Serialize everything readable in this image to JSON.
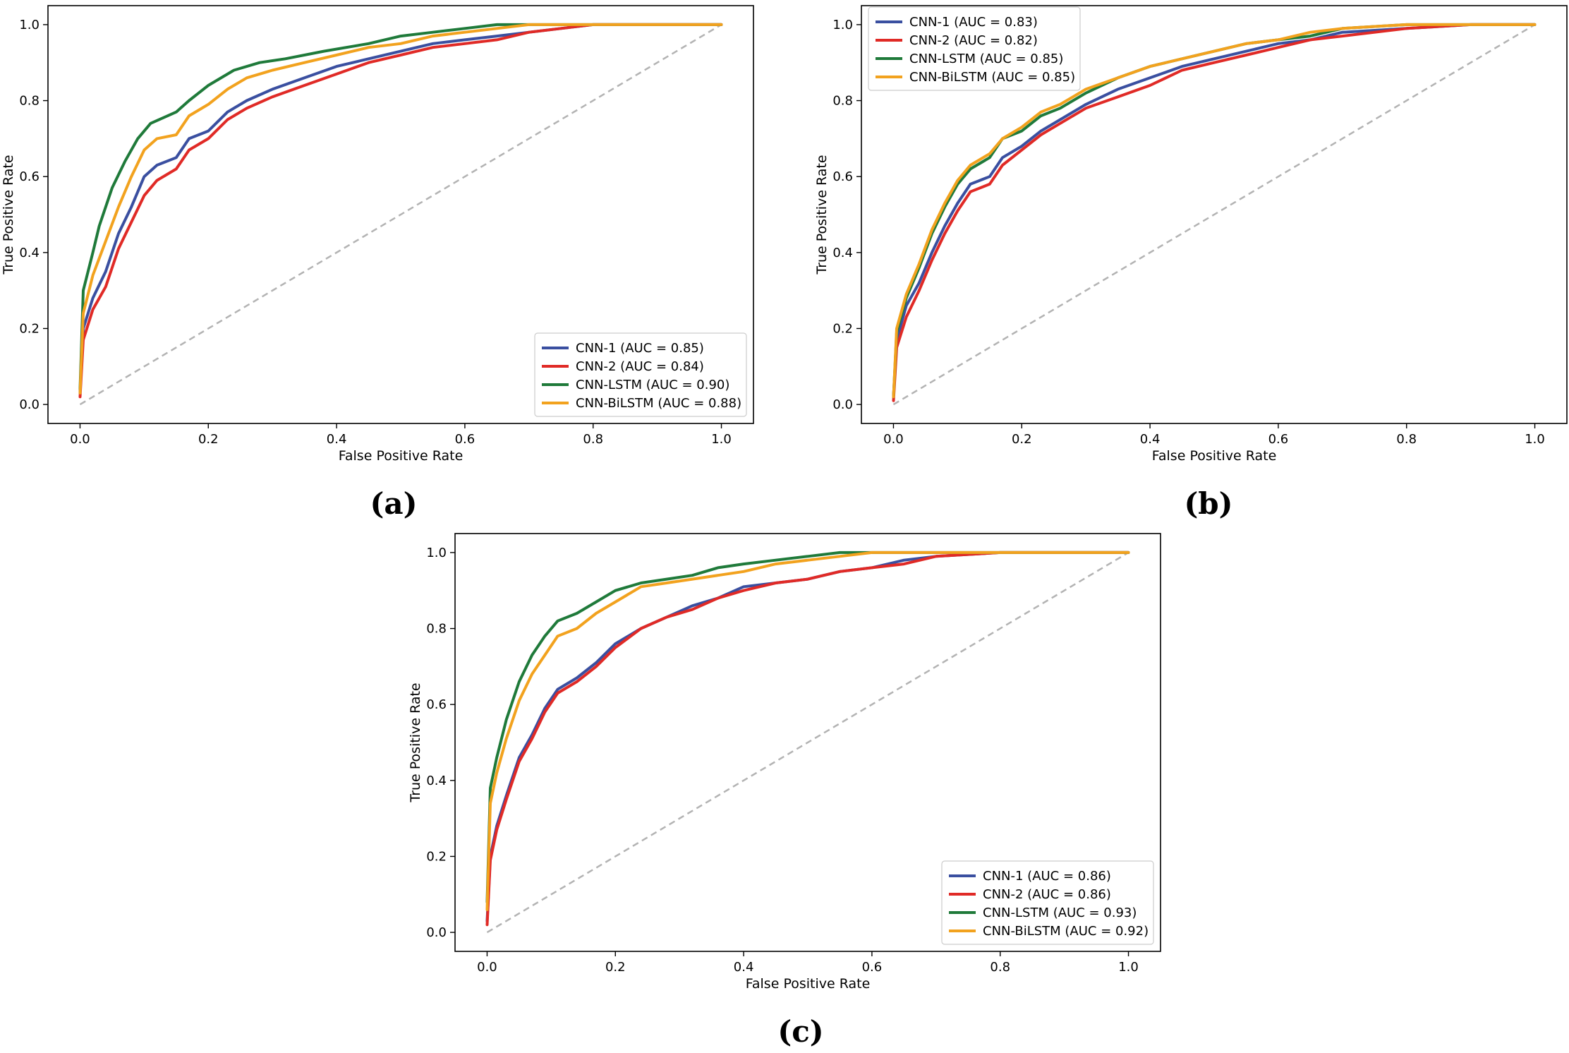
{
  "colors": {
    "CNN-1": "#3a4fa0",
    "CNN-2": "#e02a26",
    "CNN-LSTM": "#1f7a3a",
    "CNN-BiLSTM": "#f2a21e",
    "diagonal": "#b3b3b3"
  },
  "chart_data": [
    {
      "panel_label": "(a)",
      "type": "line",
      "xlabel": "False Positive Rate",
      "ylabel": "True Positive Rate",
      "xlim": [
        -0.05,
        1.05
      ],
      "ylim": [
        -0.05,
        1.05
      ],
      "xticks": [
        "0.0",
        "0.2",
        "0.4",
        "0.6",
        "0.8",
        "1.0"
      ],
      "yticks": [
        "0.0",
        "0.2",
        "0.4",
        "0.6",
        "0.8",
        "1.0"
      ],
      "grid": false,
      "legend_position": "lower-right",
      "reference_line": [
        [
          0,
          0
        ],
        [
          1,
          1
        ]
      ],
      "series": [
        {
          "name": "CNN-1",
          "legend": "CNN-1 (AUC = 0.85)",
          "color": "#3a4fa0",
          "x": [
            0,
            0.005,
            0.02,
            0.04,
            0.06,
            0.08,
            0.1,
            0.12,
            0.15,
            0.17,
            0.2,
            0.23,
            0.26,
            0.3,
            0.35,
            0.4,
            0.45,
            0.5,
            0.55,
            0.6,
            0.65,
            0.7,
            0.75,
            0.8,
            0.9,
            1
          ],
          "y": [
            0.03,
            0.2,
            0.28,
            0.35,
            0.45,
            0.52,
            0.6,
            0.63,
            0.65,
            0.7,
            0.72,
            0.77,
            0.8,
            0.83,
            0.86,
            0.89,
            0.91,
            0.93,
            0.95,
            0.96,
            0.97,
            0.98,
            0.99,
            1.0,
            1.0,
            1.0
          ]
        },
        {
          "name": "CNN-2",
          "legend": "CNN-2 (AUC = 0.84)",
          "color": "#e02a26",
          "x": [
            0,
            0.005,
            0.02,
            0.04,
            0.06,
            0.08,
            0.1,
            0.12,
            0.15,
            0.17,
            0.2,
            0.23,
            0.26,
            0.3,
            0.35,
            0.4,
            0.45,
            0.5,
            0.55,
            0.6,
            0.65,
            0.7,
            0.75,
            0.8,
            0.9,
            1
          ],
          "y": [
            0.02,
            0.17,
            0.25,
            0.31,
            0.41,
            0.48,
            0.55,
            0.59,
            0.62,
            0.67,
            0.7,
            0.75,
            0.78,
            0.81,
            0.84,
            0.87,
            0.9,
            0.92,
            0.94,
            0.95,
            0.96,
            0.98,
            0.99,
            1.0,
            1.0,
            1.0
          ]
        },
        {
          "name": "CNN-LSTM",
          "legend": "CNN-LSTM (AUC = 0.90)",
          "color": "#1f7a3a",
          "x": [
            0,
            0.005,
            0.02,
            0.03,
            0.05,
            0.07,
            0.09,
            0.11,
            0.15,
            0.17,
            0.2,
            0.24,
            0.28,
            0.32,
            0.38,
            0.45,
            0.5,
            0.55,
            0.6,
            0.65,
            0.7,
            0.8,
            0.9,
            1
          ],
          "y": [
            0.04,
            0.3,
            0.4,
            0.47,
            0.57,
            0.64,
            0.7,
            0.74,
            0.77,
            0.8,
            0.84,
            0.88,
            0.9,
            0.91,
            0.93,
            0.95,
            0.97,
            0.98,
            0.99,
            1.0,
            1.0,
            1.0,
            1.0,
            1.0
          ]
        },
        {
          "name": "CNN-BiLSTM",
          "legend": "CNN-BiLSTM (AUC = 0.88)",
          "color": "#f2a21e",
          "x": [
            0,
            0.005,
            0.02,
            0.04,
            0.06,
            0.08,
            0.1,
            0.12,
            0.15,
            0.17,
            0.2,
            0.23,
            0.26,
            0.3,
            0.35,
            0.4,
            0.45,
            0.5,
            0.55,
            0.6,
            0.65,
            0.7,
            0.8,
            0.9,
            1
          ],
          "y": [
            0.03,
            0.24,
            0.34,
            0.43,
            0.52,
            0.6,
            0.67,
            0.7,
            0.71,
            0.76,
            0.79,
            0.83,
            0.86,
            0.88,
            0.9,
            0.92,
            0.94,
            0.95,
            0.97,
            0.98,
            0.99,
            1.0,
            1.0,
            1.0,
            1.0
          ]
        }
      ]
    },
    {
      "panel_label": "(b)",
      "type": "line",
      "xlabel": "False Positive Rate",
      "ylabel": "True Positive Rate",
      "xlim": [
        -0.05,
        1.05
      ],
      "ylim": [
        -0.05,
        1.05
      ],
      "xticks": [
        "0.0",
        "0.2",
        "0.4",
        "0.6",
        "0.8",
        "1.0"
      ],
      "yticks": [
        "0.0",
        "0.2",
        "0.4",
        "0.6",
        "0.8",
        "1.0"
      ],
      "grid": false,
      "legend_position": "upper-left",
      "reference_line": [
        [
          0,
          0
        ],
        [
          1,
          1
        ]
      ],
      "series": [
        {
          "name": "CNN-1",
          "legend": "CNN-1 (AUC = 0.83)",
          "color": "#3a4fa0",
          "x": [
            0,
            0.005,
            0.02,
            0.04,
            0.06,
            0.08,
            0.1,
            0.12,
            0.15,
            0.17,
            0.2,
            0.23,
            0.26,
            0.3,
            0.35,
            0.4,
            0.45,
            0.5,
            0.55,
            0.6,
            0.65,
            0.7,
            0.8,
            0.9,
            1
          ],
          "y": [
            0.02,
            0.17,
            0.26,
            0.32,
            0.4,
            0.47,
            0.53,
            0.58,
            0.6,
            0.65,
            0.68,
            0.72,
            0.75,
            0.79,
            0.83,
            0.86,
            0.89,
            0.91,
            0.93,
            0.95,
            0.96,
            0.98,
            0.99,
            1.0,
            1.0
          ]
        },
        {
          "name": "CNN-2",
          "legend": "CNN-2 (AUC = 0.82)",
          "color": "#e02a26",
          "x": [
            0,
            0.005,
            0.02,
            0.04,
            0.06,
            0.08,
            0.1,
            0.12,
            0.15,
            0.17,
            0.2,
            0.23,
            0.26,
            0.3,
            0.35,
            0.4,
            0.45,
            0.5,
            0.55,
            0.6,
            0.65,
            0.7,
            0.8,
            0.9,
            1
          ],
          "y": [
            0.01,
            0.15,
            0.23,
            0.3,
            0.38,
            0.45,
            0.51,
            0.56,
            0.58,
            0.63,
            0.67,
            0.71,
            0.74,
            0.78,
            0.81,
            0.84,
            0.88,
            0.9,
            0.92,
            0.94,
            0.96,
            0.97,
            0.99,
            1.0,
            1.0
          ]
        },
        {
          "name": "CNN-LSTM",
          "legend": "CNN-LSTM (AUC = 0.85)",
          "color": "#1f7a3a",
          "x": [
            0,
            0.005,
            0.02,
            0.04,
            0.06,
            0.08,
            0.1,
            0.12,
            0.15,
            0.17,
            0.2,
            0.23,
            0.26,
            0.3,
            0.35,
            0.4,
            0.45,
            0.5,
            0.55,
            0.6,
            0.65,
            0.7,
            0.8,
            0.9,
            1
          ],
          "y": [
            0.02,
            0.19,
            0.28,
            0.36,
            0.45,
            0.52,
            0.58,
            0.62,
            0.65,
            0.7,
            0.72,
            0.76,
            0.78,
            0.82,
            0.86,
            0.89,
            0.91,
            0.93,
            0.95,
            0.96,
            0.97,
            0.99,
            1.0,
            1.0,
            1.0
          ]
        },
        {
          "name": "CNN-BiLSTM",
          "legend": "CNN-BiLSTM (AUC = 0.85)",
          "color": "#f2a21e",
          "x": [
            0,
            0.005,
            0.02,
            0.04,
            0.06,
            0.08,
            0.1,
            0.12,
            0.15,
            0.17,
            0.2,
            0.23,
            0.26,
            0.3,
            0.35,
            0.4,
            0.45,
            0.5,
            0.55,
            0.6,
            0.65,
            0.7,
            0.8,
            0.9,
            1
          ],
          "y": [
            0.02,
            0.2,
            0.29,
            0.37,
            0.46,
            0.53,
            0.59,
            0.63,
            0.66,
            0.7,
            0.73,
            0.77,
            0.79,
            0.83,
            0.86,
            0.89,
            0.91,
            0.93,
            0.95,
            0.96,
            0.98,
            0.99,
            1.0,
            1.0,
            1.0
          ]
        }
      ]
    },
    {
      "panel_label": "(c)",
      "type": "line",
      "xlabel": "False Positive Rate",
      "ylabel": "True Positive Rate",
      "xlim": [
        -0.05,
        1.05
      ],
      "ylim": [
        -0.05,
        1.05
      ],
      "xticks": [
        "0.0",
        "0.2",
        "0.4",
        "0.6",
        "0.8",
        "1.0"
      ],
      "yticks": [
        "0.0",
        "0.2",
        "0.4",
        "0.6",
        "0.8",
        "1.0"
      ],
      "grid": false,
      "legend_position": "lower-right",
      "reference_line": [
        [
          0,
          0
        ],
        [
          1,
          1
        ]
      ],
      "series": [
        {
          "name": "CNN-1",
          "legend": "CNN-1 (AUC = 0.86)",
          "color": "#3a4fa0",
          "x": [
            0,
            0.005,
            0.015,
            0.03,
            0.05,
            0.07,
            0.09,
            0.11,
            0.14,
            0.17,
            0.2,
            0.24,
            0.28,
            0.32,
            0.36,
            0.4,
            0.45,
            0.5,
            0.55,
            0.6,
            0.65,
            0.7,
            0.8,
            0.9,
            1
          ],
          "y": [
            0.03,
            0.2,
            0.28,
            0.36,
            0.46,
            0.52,
            0.59,
            0.64,
            0.67,
            0.71,
            0.76,
            0.8,
            0.83,
            0.86,
            0.88,
            0.91,
            0.92,
            0.93,
            0.95,
            0.96,
            0.98,
            0.99,
            1.0,
            1.0,
            1.0
          ]
        },
        {
          "name": "CNN-2",
          "legend": "CNN-2 (AUC = 0.86)",
          "color": "#e02a26",
          "x": [
            0,
            0.005,
            0.015,
            0.03,
            0.05,
            0.07,
            0.09,
            0.11,
            0.14,
            0.17,
            0.2,
            0.24,
            0.28,
            0.32,
            0.36,
            0.4,
            0.45,
            0.5,
            0.55,
            0.6,
            0.65,
            0.7,
            0.8,
            0.9,
            1
          ],
          "y": [
            0.02,
            0.19,
            0.27,
            0.35,
            0.45,
            0.51,
            0.58,
            0.63,
            0.66,
            0.7,
            0.75,
            0.8,
            0.83,
            0.85,
            0.88,
            0.9,
            0.92,
            0.93,
            0.95,
            0.96,
            0.97,
            0.99,
            1.0,
            1.0,
            1.0
          ]
        },
        {
          "name": "CNN-LSTM",
          "legend": "CNN-LSTM (AUC = 0.93)",
          "color": "#1f7a3a",
          "x": [
            0,
            0.005,
            0.015,
            0.03,
            0.05,
            0.07,
            0.09,
            0.11,
            0.14,
            0.17,
            0.2,
            0.24,
            0.28,
            0.32,
            0.36,
            0.4,
            0.45,
            0.5,
            0.55,
            0.6,
            0.65,
            0.7,
            0.8,
            0.9,
            1
          ],
          "y": [
            0.08,
            0.38,
            0.46,
            0.56,
            0.66,
            0.73,
            0.78,
            0.82,
            0.84,
            0.87,
            0.9,
            0.92,
            0.93,
            0.94,
            0.96,
            0.97,
            0.98,
            0.99,
            1.0,
            1.0,
            1.0,
            1.0,
            1.0,
            1.0,
            1.0
          ]
        },
        {
          "name": "CNN-BiLSTM",
          "legend": "CNN-BiLSTM (AUC = 0.92)",
          "color": "#f2a21e",
          "x": [
            0,
            0.005,
            0.015,
            0.03,
            0.05,
            0.07,
            0.09,
            0.11,
            0.14,
            0.17,
            0.2,
            0.24,
            0.28,
            0.32,
            0.36,
            0.4,
            0.45,
            0.5,
            0.55,
            0.6,
            0.65,
            0.7,
            0.8,
            0.9,
            1
          ],
          "y": [
            0.06,
            0.34,
            0.42,
            0.51,
            0.61,
            0.68,
            0.73,
            0.78,
            0.8,
            0.84,
            0.87,
            0.91,
            0.92,
            0.93,
            0.94,
            0.95,
            0.97,
            0.98,
            0.99,
            1.0,
            1.0,
            1.0,
            1.0,
            1.0,
            1.0
          ]
        }
      ]
    }
  ]
}
